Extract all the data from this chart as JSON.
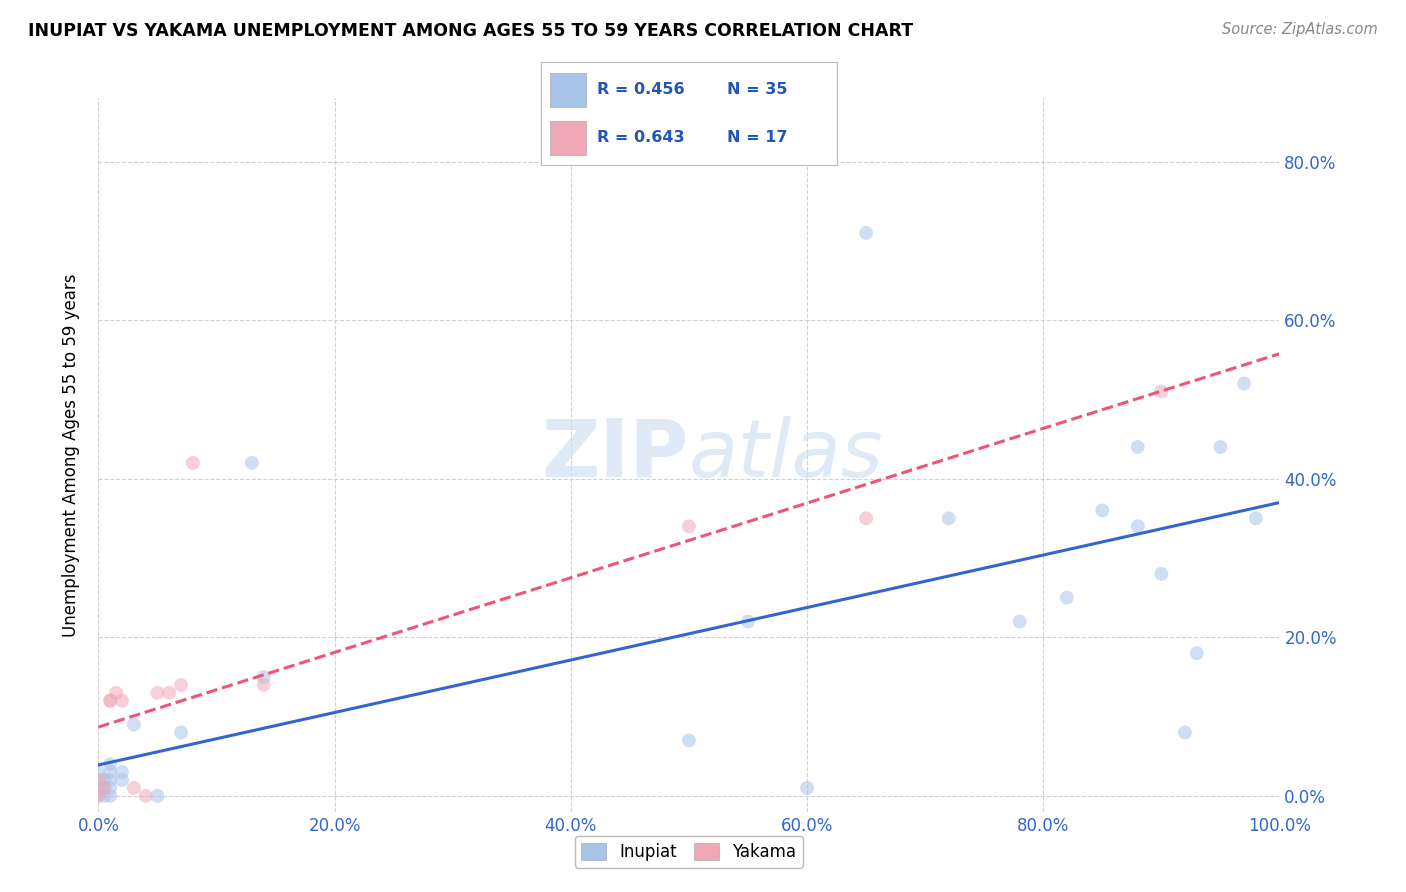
{
  "title": "INUPIAT VS YAKAMA UNEMPLOYMENT AMONG AGES 55 TO 59 YEARS CORRELATION CHART",
  "source": "Source: ZipAtlas.com",
  "ylabel": "Unemployment Among Ages 55 to 59 years",
  "xlim": [
    0.0,
    1.0
  ],
  "ylim": [
    -0.02,
    0.88
  ],
  "xticks": [
    0.0,
    0.2,
    0.4,
    0.6,
    0.8,
    1.0
  ],
  "yticks": [
    0.0,
    0.2,
    0.4,
    0.6,
    0.8
  ],
  "xticklabels": [
    "0.0%",
    "20.0%",
    "40.0%",
    "60.0%",
    "80.0%",
    "100.0%"
  ],
  "yticklabels": [
    "0.0%",
    "20.0%",
    "40.0%",
    "60.0%",
    "80.0%"
  ],
  "background_color": "#ffffff",
  "grid_color": "#cccccc",
  "watermark_zip": "ZIP",
  "watermark_atlas": "atlas",
  "inupiat_color": "#a8c4e8",
  "yakama_color": "#f0a8b8",
  "inupiat_line_color": "#3366cc",
  "yakama_line_color": "#ee5577",
  "legend_r_inupiat": "R = 0.456",
  "legend_n_inupiat": "N = 35",
  "legend_r_yakama": "R = 0.643",
  "legend_n_yakama": "N = 17",
  "inupiat_x": [
    0.0,
    0.0,
    0.0,
    0.0,
    0.005,
    0.005,
    0.005,
    0.01,
    0.01,
    0.01,
    0.01,
    0.01,
    0.02,
    0.02,
    0.03,
    0.05,
    0.07,
    0.13,
    0.14,
    0.5,
    0.55,
    0.6,
    0.65,
    0.72,
    0.78,
    0.82,
    0.85,
    0.88,
    0.88,
    0.9,
    0.92,
    0.93,
    0.95,
    0.97,
    0.98
  ],
  "inupiat_y": [
    0.0,
    0.01,
    0.02,
    0.03,
    0.0,
    0.01,
    0.02,
    0.0,
    0.01,
    0.02,
    0.03,
    0.04,
    0.02,
    0.03,
    0.09,
    0.0,
    0.08,
    0.42,
    0.15,
    0.07,
    0.22,
    0.01,
    0.71,
    0.35,
    0.22,
    0.25,
    0.36,
    0.44,
    0.34,
    0.28,
    0.08,
    0.18,
    0.44,
    0.52,
    0.35
  ],
  "yakama_x": [
    0.0,
    0.0,
    0.005,
    0.01,
    0.01,
    0.015,
    0.02,
    0.03,
    0.04,
    0.05,
    0.06,
    0.07,
    0.08,
    0.14,
    0.5,
    0.65,
    0.9
  ],
  "yakama_y": [
    0.0,
    0.02,
    0.01,
    0.12,
    0.12,
    0.13,
    0.12,
    0.01,
    0.0,
    0.13,
    0.13,
    0.14,
    0.42,
    0.14,
    0.34,
    0.35,
    0.51
  ],
  "marker_size": 100,
  "alpha": 0.55
}
